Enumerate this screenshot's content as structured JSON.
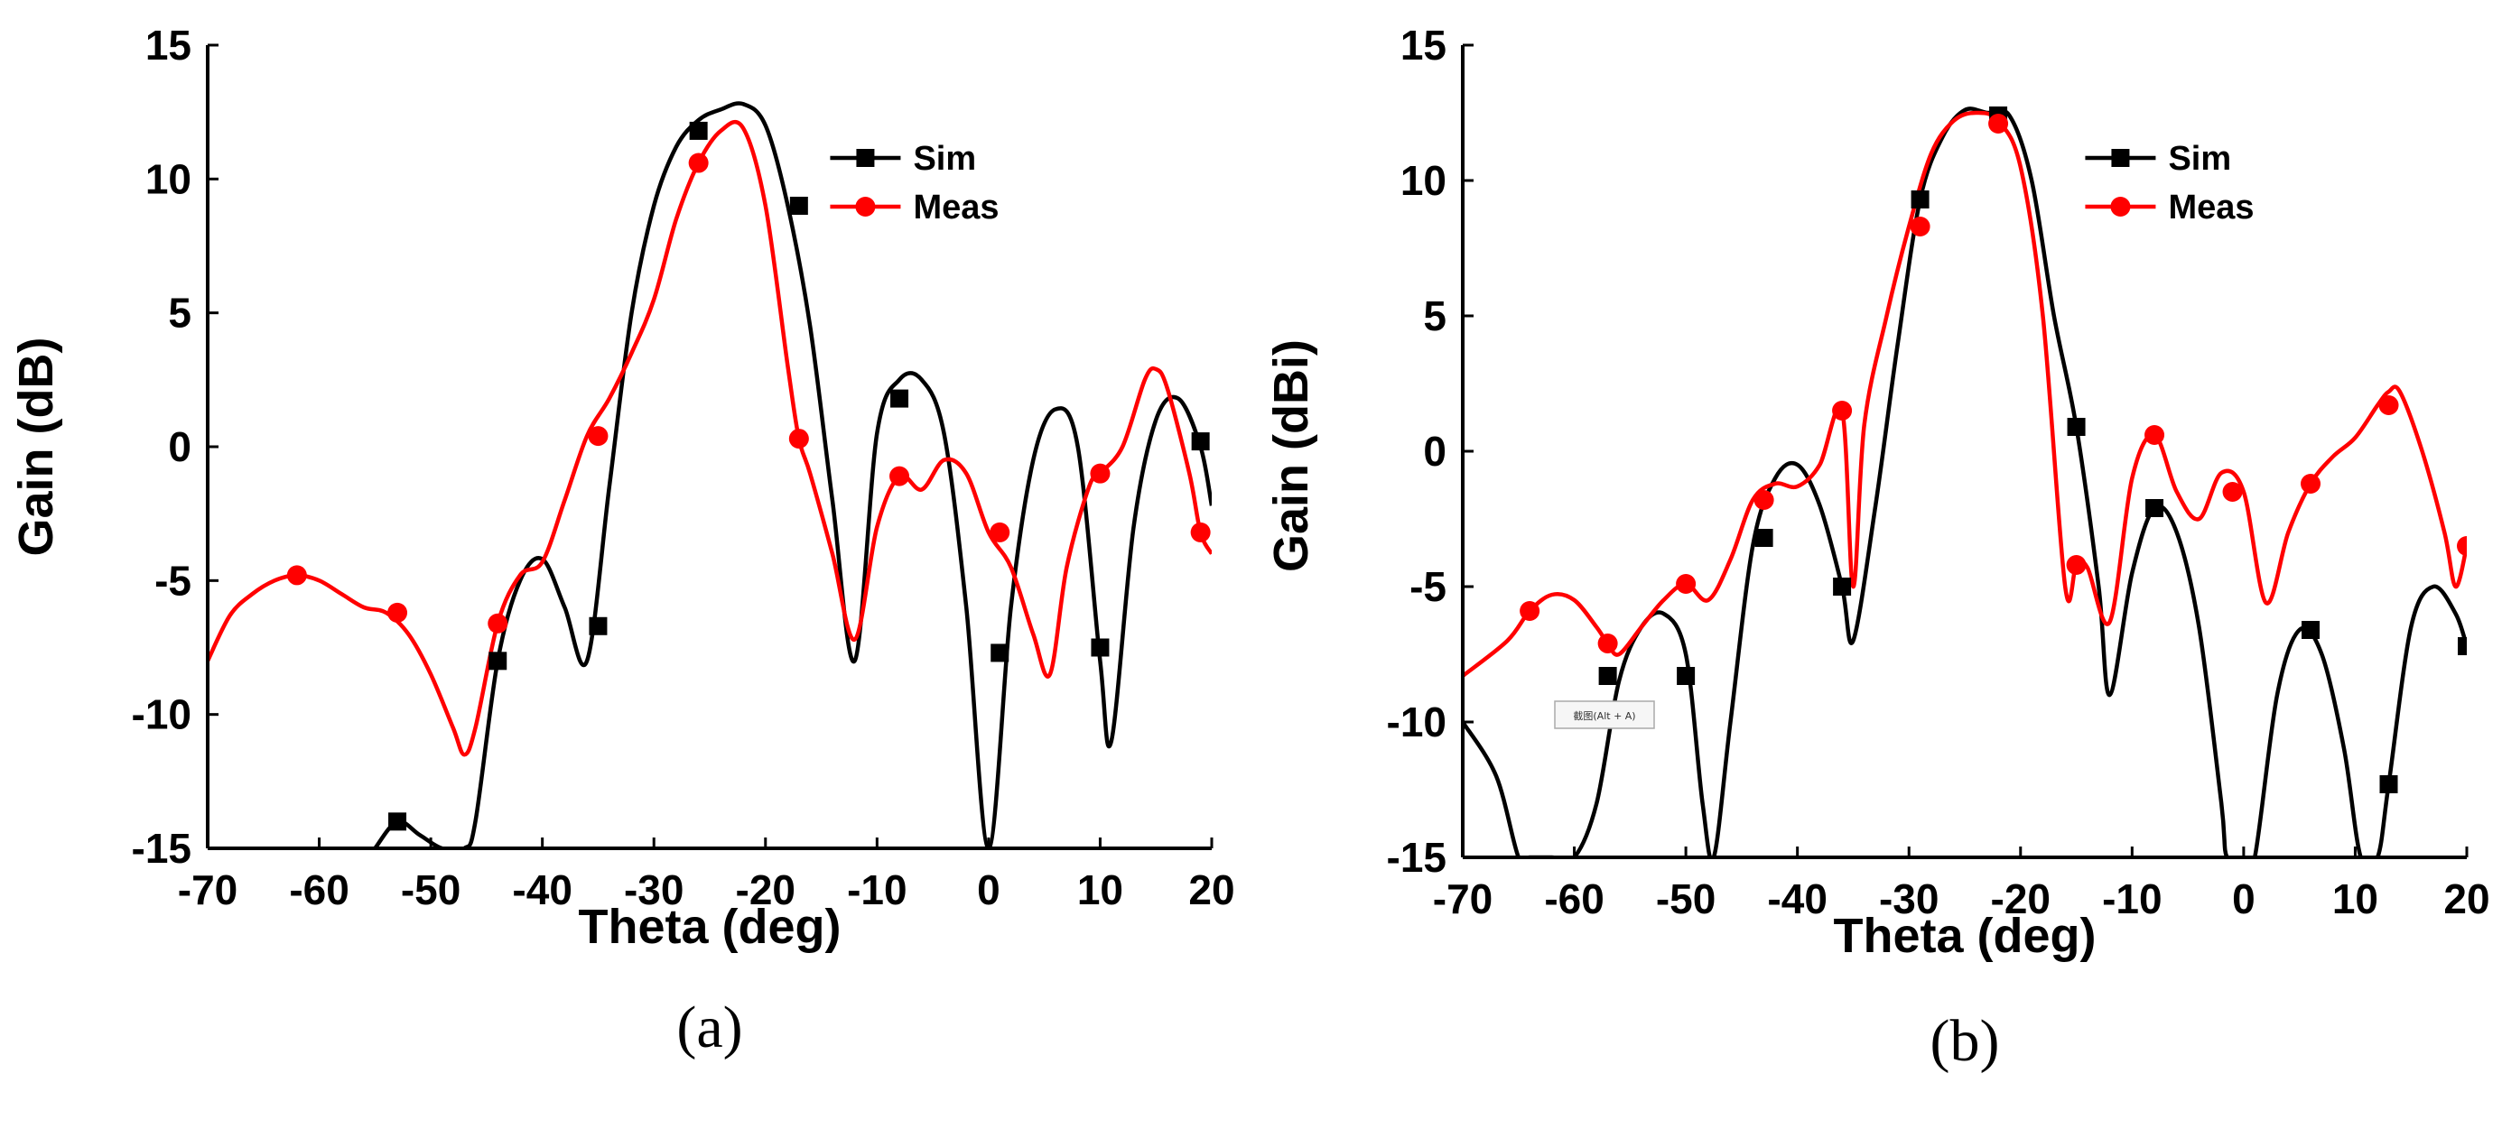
{
  "chart_data": [
    {
      "type": "line",
      "caption": "(a)",
      "xlabel": "Theta (deg)",
      "ylabel": "Gain (dB)",
      "xlim": [
        -70,
        20
      ],
      "ylim": [
        -15,
        15
      ],
      "xticks": [
        "-70",
        "-60",
        "-50",
        "-40",
        "-30",
        "-20",
        "-10",
        "0",
        "10",
        "20"
      ],
      "yticks": [
        "15",
        "10",
        "5",
        "0",
        "-5",
        "-10",
        "-15"
      ],
      "legend_position": "top-right",
      "series": [
        {
          "name": "Sim",
          "color": "#000000",
          "marker": "square",
          "x": [
            -55,
            -53,
            -51,
            -49,
            -47,
            -46,
            -44,
            -42,
            -40,
            -38,
            -36,
            -34,
            -32,
            -30,
            -28,
            -26,
            -24,
            -22,
            -20,
            -18,
            -16,
            -14,
            -12,
            -10,
            -8,
            -6,
            -4,
            -2,
            0,
            2,
            4,
            6,
            8,
            10,
            11,
            13,
            15,
            17,
            19,
            20
          ],
          "y": [
            -15,
            -14,
            -14.5,
            -15,
            -15,
            -14,
            -8,
            -5,
            -4.2,
            -6,
            -8,
            -1.5,
            5,
            9,
            11.2,
            12.2,
            12.6,
            12.8,
            12,
            9,
            4.5,
            -2,
            -8,
            0.5,
            2.5,
            2.5,
            0.5,
            -6,
            -15,
            -6,
            -0.5,
            1.4,
            0,
            -8,
            -11,
            -3,
            1,
            1.8,
            0,
            -2.2
          ],
          "markers": [
            [
              -53,
              -14
            ],
            [
              -44,
              -8
            ],
            [
              -35,
              -6.7
            ],
            [
              -26,
              11.8
            ],
            [
              -17,
              9
            ],
            [
              -8,
              1.8
            ],
            [
              1,
              -7.7
            ],
            [
              10,
              -7.5
            ],
            [
              19,
              0.2
            ]
          ]
        },
        {
          "name": "Meas",
          "color": "#ff0000",
          "marker": "circle",
          "x": [
            -70,
            -68,
            -66,
            -64,
            -62,
            -60,
            -58,
            -56,
            -54,
            -52,
            -50,
            -48,
            -47,
            -46,
            -44,
            -42,
            -40,
            -38,
            -36,
            -34,
            -32,
            -30,
            -28,
            -26,
            -24,
            -22,
            -20,
            -18,
            -17,
            -16,
            -14,
            -12,
            -10,
            -8,
            -6,
            -4,
            -2,
            0,
            2,
            4,
            5.5,
            7,
            9,
            10,
            12,
            14,
            15,
            16,
            18,
            19,
            20
          ],
          "y": [
            -8,
            -6.3,
            -5.5,
            -5,
            -4.8,
            -5,
            -5.5,
            -6,
            -6.2,
            -7,
            -8.5,
            -10.5,
            -11.5,
            -10.5,
            -6.6,
            -4.8,
            -4.3,
            -2,
            0.4,
            1.8,
            3.5,
            5.5,
            8.5,
            10.6,
            11.8,
            11.9,
            9,
            3,
            0.3,
            -1,
            -4,
            -7.2,
            -3,
            -1.1,
            -1.6,
            -0.5,
            -1,
            -3.2,
            -4.5,
            -7,
            -8.5,
            -4.5,
            -1.5,
            -1,
            0,
            2.5,
            2.9,
            2.2,
            -1,
            -3.2,
            -4
          ],
          "markers": [
            [
              -62,
              -4.8
            ],
            [
              -53,
              -6.2
            ],
            [
              -44,
              -6.6
            ],
            [
              -35,
              0.4
            ],
            [
              -26,
              10.6
            ],
            [
              -17,
              0.3
            ],
            [
              -8,
              -1.1
            ],
            [
              1,
              -3.2
            ],
            [
              10,
              -1.0
            ],
            [
              19,
              -3.2
            ]
          ]
        }
      ]
    },
    {
      "type": "line",
      "caption": "(b)",
      "xlabel": "Theta (deg)",
      "ylabel": "Gain (dBi)",
      "xlim": [
        -70,
        20
      ],
      "ylim": [
        -15,
        15
      ],
      "xticks": [
        "-70",
        "-60",
        "-50",
        "-40",
        "-30",
        "-20",
        "-10",
        "0",
        "10",
        "20"
      ],
      "yticks": [
        "15",
        "10",
        "5",
        "0",
        "-5",
        "-10",
        "-15"
      ],
      "legend_position": "top-right",
      "tooltip": "截图(Alt + A)",
      "series": [
        {
          "name": "Sim",
          "color": "#000000",
          "marker": "square",
          "x": [
            -70,
            -67,
            -65,
            -64,
            -62,
            -60,
            -58,
            -56,
            -54,
            -52,
            -50,
            -48.5,
            -47.5,
            -46,
            -44,
            -42,
            -40,
            -38,
            -36,
            -35,
            -33,
            -31,
            -29,
            -27,
            -25,
            -23,
            -21,
            -19,
            -17,
            -15,
            -13,
            -12,
            -10,
            -8,
            -6,
            -4,
            -2,
            -1.5,
            0,
            1,
            3,
            5,
            7,
            9,
            10.5,
            12,
            13,
            15,
            17,
            19,
            20
          ],
          "y": [
            -10,
            -12,
            -15,
            -15,
            -15,
            -15,
            -13,
            -8.5,
            -6.5,
            -6,
            -7.5,
            -13,
            -15,
            -10,
            -3.5,
            -1,
            -0.5,
            -2,
            -5,
            -7,
            -2,
            4,
            9.3,
            11.6,
            12.6,
            12.5,
            12.4,
            10,
            5,
            0.9,
            -5,
            -9,
            -4.5,
            -2.1,
            -3,
            -6.5,
            -13,
            -15,
            -15,
            -15,
            -9,
            -6.6,
            -7.5,
            -11,
            -15,
            -15,
            -12.3,
            -6.5,
            -5,
            -6,
            -7.2
          ],
          "markers": [
            [
              -57,
              -8.3
            ],
            [
              -50,
              -8.3
            ],
            [
              -43,
              -3.2
            ],
            [
              -36,
              -5
            ],
            [
              -29,
              9.3
            ],
            [
              -22,
              12.4
            ],
            [
              -15,
              0.9
            ],
            [
              -8,
              -2.1
            ],
            [
              6,
              -6.6
            ],
            [
              13,
              -12.3
            ],
            [
              20,
              -7.2
            ]
          ]
        },
        {
          "name": "Meas",
          "color": "#ff0000",
          "marker": "circle",
          "x": [
            -70,
            -66,
            -64,
            -62,
            -60,
            -58,
            -57,
            -56,
            -54,
            -52,
            -50,
            -48,
            -46,
            -44,
            -42,
            -40,
            -38,
            -36,
            -35,
            -34,
            -32,
            -30,
            -28,
            -26,
            -24,
            -22,
            -20,
            -18,
            -16,
            -15,
            -14,
            -12,
            -10,
            -8,
            -6,
            -4,
            -2,
            0,
            2,
            4,
            6,
            8,
            10,
            12,
            13,
            14,
            16,
            18,
            19,
            20
          ],
          "y": [
            -8.3,
            -7,
            -5.9,
            -5.3,
            -5.5,
            -6.5,
            -7.1,
            -7.5,
            -6.5,
            -5.5,
            -4.9,
            -5.5,
            -4,
            -1.8,
            -1.2,
            -1.3,
            -0.5,
            1.5,
            -5,
            1,
            5,
            8.3,
            11,
            12.2,
            12.5,
            12.2,
            10.5,
            5,
            -5,
            -4.2,
            -4.3,
            -6.3,
            -1,
            0.6,
            -1.5,
            -2.5,
            -0.8,
            -1.5,
            -5.6,
            -3,
            -1.2,
            -0.2,
            0.5,
            1.7,
            2.2,
            2.2,
            0,
            -3,
            -5,
            -3.5
          ],
          "markers": [
            [
              -64,
              -5.9
            ],
            [
              -57,
              -7.1
            ],
            [
              -50,
              -4.9
            ],
            [
              -43,
              -1.8
            ],
            [
              -36,
              1.5
            ],
            [
              -29,
              8.3
            ],
            [
              -22,
              12.1
            ],
            [
              -15,
              -4.2
            ],
            [
              -8,
              0.6
            ],
            [
              -1,
              -1.5
            ],
            [
              6,
              -1.2
            ],
            [
              13,
              1.7
            ],
            [
              20,
              -3.5
            ]
          ]
        }
      ]
    }
  ]
}
